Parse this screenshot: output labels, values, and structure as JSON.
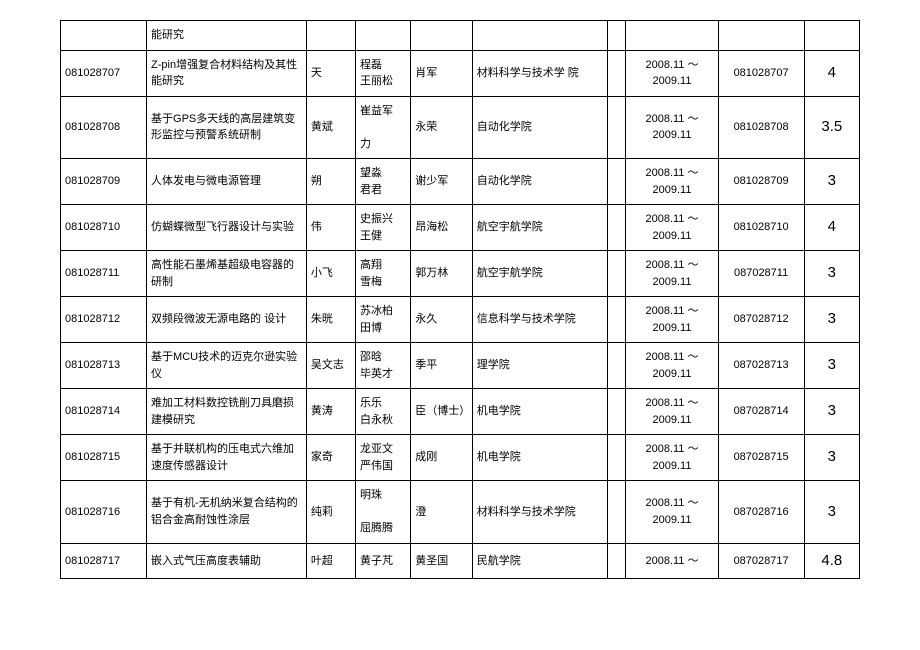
{
  "table": {
    "rows": [
      {
        "id": "",
        "title": "能研究",
        "n1": "",
        "n2": "",
        "n3": "",
        "dept": "",
        "date": "",
        "id2": "",
        "score": ""
      },
      {
        "id": "081028707",
        "title": "Z-pin增强复合材料结构及其性能研究",
        "n1": "天",
        "n2": "程磊\n王丽松",
        "n3": "肖军",
        "dept": "材料科学与技术学  院",
        "date": "2008.11 ～\n2009.11",
        "id2": "081028707",
        "score": "4"
      },
      {
        "id": "081028708",
        "title": "基于GPS多天线的高层建筑变形监控与预警系统研制",
        "n1": "黄斌",
        "n2": "崔益军\n\n力",
        "n3": "永荣",
        "dept": "自动化学院",
        "date": "2008.11 ～\n2009.11",
        "id2": "081028708",
        "score": "3.5"
      },
      {
        "id": "081028709",
        "title": "人体发电与微电源管理",
        "n1": "朔",
        "n2": "望淼\n君君",
        "n3": "谢少军",
        "dept": "自动化学院",
        "date": "2008.11 ～\n2009.11",
        "id2": "081028709",
        "score": "3"
      },
      {
        "id": "081028710",
        "title": "仿蝴蝶微型飞行器设计与实验",
        "n1": "伟",
        "n2": "史振兴\n王健",
        "n3": "昂海松",
        "dept": "航空宇航学院",
        "date": "2008.11 ～\n2009.11",
        "id2": "081028710",
        "score": "4"
      },
      {
        "id": "081028711",
        "title": "高性能石墨烯基超级电容器的研制",
        "n1": "小飞",
        "n2": "高翔\n雪梅",
        "n3": "郭万林",
        "dept": "航空宇航学院",
        "date": "2008.11 ～\n2009.11",
        "id2": "087028711",
        "score": "3"
      },
      {
        "id": "081028712",
        "title": "双频段微波无源电路的  设计",
        "n1": "朱晄",
        "n2": "苏冰柏\n田博",
        "n3": "永久",
        "dept": "信息科学与技术学院",
        "date": "2008.11 ～\n2009.11",
        "id2": "087028712",
        "score": "3"
      },
      {
        "id": "081028713",
        "title": "基于MCU技术的迈克尔逊实验仪",
        "n1": "吴文志",
        "n2": "邵晗\n毕英才",
        "n3": "季平",
        "dept": "理学院",
        "date": "2008.11 ～\n2009.11",
        "id2": "087028713",
        "score": "3"
      },
      {
        "id": "081028714",
        "title": "难加工材料数控铣削刀具磨损建模研究",
        "n1": "黄涛",
        "n2": "乐乐\n白永秋",
        "n3": "臣（博士）",
        "dept": "机电学院",
        "date": "2008.11 ～\n2009.11",
        "id2": "087028714",
        "score": "3"
      },
      {
        "id": "081028715",
        "title": "基于并联机构的压电式六维加速度传感器设计",
        "n1": "家奇",
        "n2": "龙亚文\n严伟国",
        "n3": "成刚",
        "dept": "机电学院",
        "date": "2008.11 ～\n2009.11",
        "id2": "087028715",
        "score": "3"
      },
      {
        "id": "081028716",
        "title": "基于有机-无机纳米复合结构的铝合金高耐蚀性涂层",
        "n1": "纯莉",
        "n2": "明珠\n\n屈腾腾",
        "n3": "澄",
        "dept": "材料科学与技术学院",
        "date": "2008.11 ～\n2009.11",
        "id2": "087028716",
        "score": "3"
      },
      {
        "id": "081028717",
        "title": "嵌入式气压高度表辅助",
        "n1": "叶超",
        "n2": "黄子芃",
        "n3": "黄圣国",
        "dept": "民航学院",
        "date": "2008.11 ～",
        "id2": "087028717",
        "score": "4.8"
      }
    ]
  }
}
